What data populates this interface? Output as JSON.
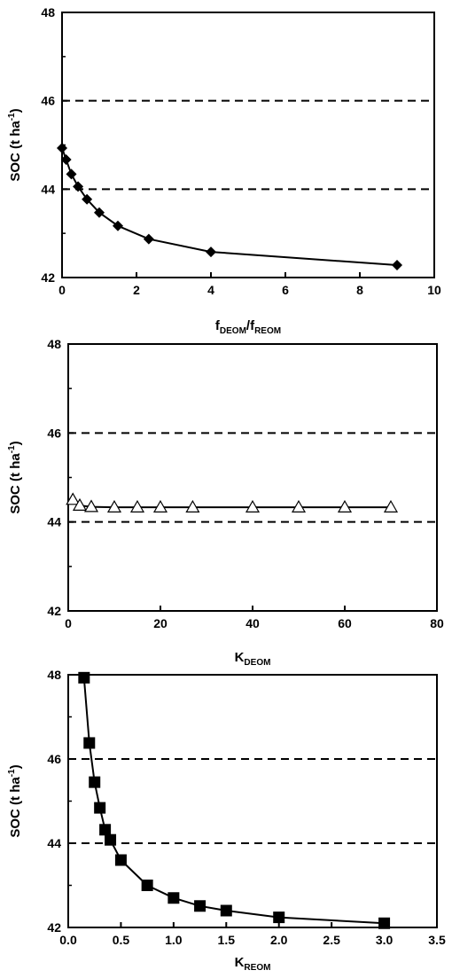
{
  "chart_data": [
    {
      "type": "line",
      "xlabel_parts": {
        "a": "f",
        "a_sub": "DEOM",
        "slash": "/",
        "b": "f",
        "b_sub": "REOM"
      },
      "ylabel_parts": {
        "main": "SOC (t ha",
        "sup": "-1",
        "close": ")"
      },
      "xlim": [
        0,
        10
      ],
      "ylim": [
        42,
        48
      ],
      "xticks": [
        0,
        2,
        4,
        6,
        8,
        10
      ],
      "xtick_labels": [
        "0",
        "2",
        "4",
        "6",
        "8",
        "10"
      ],
      "yticks": [
        42,
        44,
        46,
        48
      ],
      "ytick_labels": [
        "42",
        "44",
        "46",
        "48"
      ],
      "reference_lines": [
        44,
        46
      ],
      "marker": "diamond-filled",
      "series": [
        {
          "x": [
            0.0,
            0.11,
            0.25,
            0.43,
            0.67,
            1.0,
            1.5,
            2.33,
            4.0,
            9.0
          ],
          "y": [
            44.93,
            44.67,
            44.34,
            44.06,
            43.77,
            43.47,
            43.17,
            42.87,
            42.58,
            42.28
          ]
        }
      ]
    },
    {
      "type": "line",
      "xlabel_parts": {
        "a": "K",
        "a_sub": "DEOM"
      },
      "ylabel_parts": {
        "main": "SOC (t ha",
        "sup": "-1",
        "close": ")"
      },
      "xlim": [
        0,
        80
      ],
      "ylim": [
        42,
        48
      ],
      "xticks": [
        0,
        20,
        40,
        60,
        80
      ],
      "xtick_labels": [
        "0",
        "20",
        "40",
        "60",
        "80"
      ],
      "yticks": [
        42,
        44,
        46,
        48
      ],
      "ytick_labels": [
        "42",
        "44",
        "46",
        "48"
      ],
      "reference_lines": [
        44,
        46
      ],
      "marker": "triangle-open",
      "series": [
        {
          "x": [
            1,
            2.5,
            5,
            10,
            15,
            20,
            27,
            40,
            50,
            60,
            70
          ],
          "y": [
            44.5,
            44.37,
            44.34,
            44.33,
            44.33,
            44.33,
            44.33,
            44.33,
            44.33,
            44.33,
            44.33
          ]
        }
      ]
    },
    {
      "type": "line",
      "xlabel_parts": {
        "a": "K",
        "a_sub": "REOM"
      },
      "ylabel_parts": {
        "main": "SOC (t ha",
        "sup": "-1",
        "close": ")"
      },
      "xlim": [
        0,
        3.5
      ],
      "ylim": [
        42,
        48
      ],
      "xticks": [
        0,
        0.5,
        1.0,
        1.5,
        2.0,
        2.5,
        3.0,
        3.5
      ],
      "xtick_labels": [
        "0.0",
        "0.5",
        "1.0",
        "1.5",
        "2.0",
        "2.5",
        "3.0",
        "3.5"
      ],
      "yticks": [
        42,
        44,
        46,
        48
      ],
      "ytick_labels": [
        "42",
        "44",
        "46",
        "48"
      ],
      "reference_lines": [
        44,
        46
      ],
      "marker": "square-filled",
      "series": [
        {
          "x": [
            0.15,
            0.2,
            0.25,
            0.3,
            0.35,
            0.4,
            0.5,
            0.75,
            1.0,
            1.25,
            1.5,
            2.0,
            3.0
          ],
          "y": [
            47.93,
            46.38,
            45.45,
            44.84,
            44.32,
            44.08,
            43.6,
            43.0,
            42.7,
            42.51,
            42.4,
            42.24,
            42.1
          ]
        }
      ]
    }
  ]
}
